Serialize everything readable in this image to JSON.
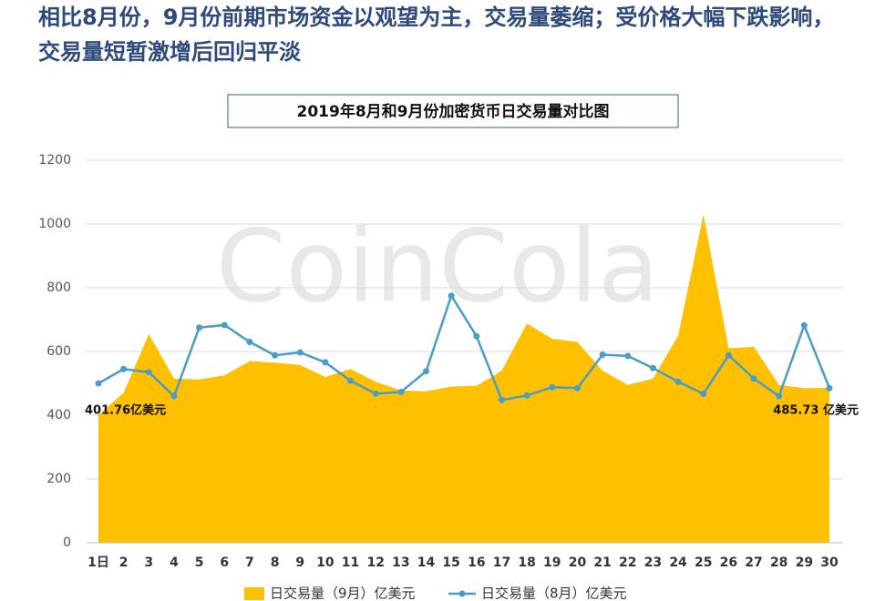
{
  "headline": "相比8月份，9月份前期市场资金以观望为主，交易量萎缩；受价格大幅下跌影响，交易量短暂激增后回归平淡",
  "watermark": "CoinCola",
  "chart_data": {
    "type": "area-line",
    "title": "2019年8月和9月份加密货币日交易量对比图",
    "categories": [
      "1日",
      "2",
      "3",
      "4",
      "5",
      "6",
      "7",
      "8",
      "9",
      "10",
      "11",
      "12",
      "13",
      "14",
      "15",
      "16",
      "17",
      "18",
      "19",
      "20",
      "21",
      "22",
      "23",
      "24",
      "25",
      "26",
      "27",
      "28",
      "29",
      "30"
    ],
    "series": [
      {
        "name": "日交易量（9月）亿美元",
        "kind": "area",
        "color": "#ffc000",
        "values": [
          401.76,
          470,
          655,
          515,
          512,
          525,
          570,
          565,
          558,
          520,
          545,
          505,
          478,
          475,
          490,
          492,
          540,
          688,
          640,
          630,
          540,
          495,
          515,
          650,
          1030,
          610,
          615,
          495,
          485,
          485.73
        ],
        "value_labels": [
          "401.76亿美元",
          null,
          null,
          null,
          null,
          null,
          null,
          null,
          null,
          null,
          null,
          null,
          null,
          null,
          null,
          null,
          null,
          null,
          null,
          null,
          null,
          null,
          null,
          null,
          null,
          null,
          null,
          null,
          null,
          "485.73 亿美元"
        ]
      },
      {
        "name": "日交易量（8月）亿美元",
        "kind": "line",
        "color": "#4a9cc9",
        "values": [
          500,
          545,
          535,
          460,
          675,
          683,
          630,
          588,
          597,
          566,
          508,
          468,
          473,
          538,
          775,
          648,
          448,
          462,
          488,
          485,
          590,
          586,
          548,
          505,
          467,
          588,
          515,
          460,
          682,
          485
        ]
      }
    ],
    "ylim": [
      0,
      1200
    ],
    "yticks": [
      0,
      200,
      400,
      600,
      800,
      1000,
      1200
    ],
    "grid": true
  }
}
